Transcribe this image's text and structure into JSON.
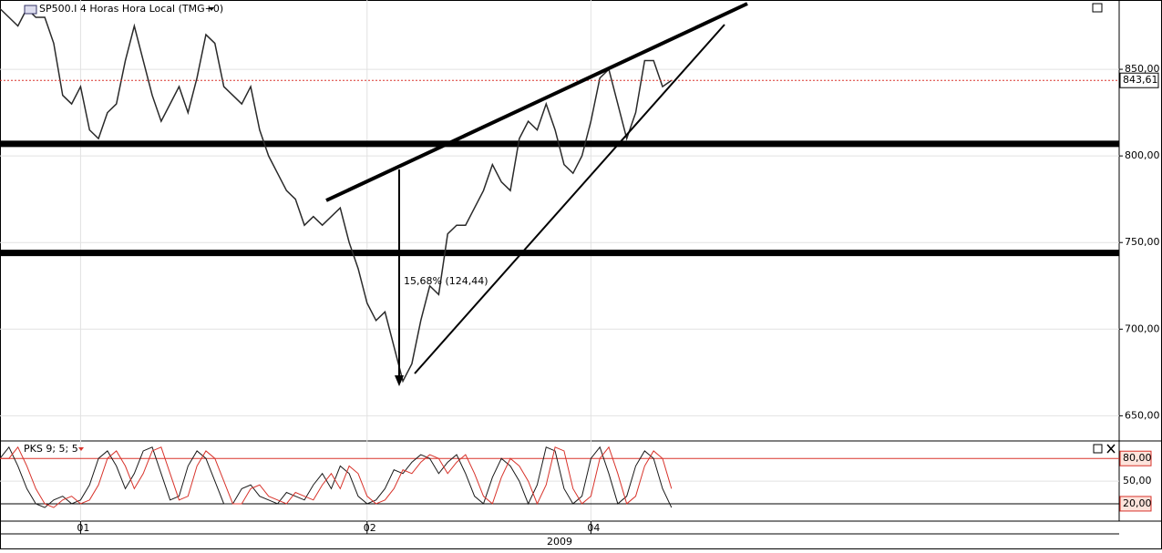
{
  "chart_data": [
    {
      "type": "line",
      "title": "SP500.I 4 Horas Hora Local (TMG+0)",
      "color": "#2a2a2a",
      "values": [
        885,
        880,
        875,
        885,
        880,
        880,
        865,
        835,
        830,
        840,
        815,
        810,
        825,
        830,
        855,
        875,
        855,
        835,
        820,
        830,
        840,
        825,
        845,
        870,
        865,
        840,
        835,
        830,
        840,
        815,
        800,
        790,
        780,
        775,
        760,
        765,
        760,
        765,
        770,
        750,
        735,
        715,
        705,
        710,
        690,
        670,
        680,
        705,
        725,
        720,
        755,
        760,
        760,
        770,
        780,
        795,
        785,
        780,
        810,
        820,
        815,
        830,
        815,
        795,
        790,
        800,
        820,
        845,
        850,
        830,
        810,
        825,
        855,
        855,
        840,
        843.61
      ],
      "xlim": [
        0,
        125
      ],
      "xticks": [
        {
          "value": 9,
          "label": "01"
        },
        {
          "value": 41,
          "label": "02"
        },
        {
          "value": 66,
          "label": "04"
        }
      ],
      "xlabel": "2009",
      "ylim": [
        636,
        890
      ],
      "yticks": [
        {
          "value": 650,
          "label": "650,00"
        },
        {
          "value": 700,
          "label": "700,00"
        },
        {
          "value": 750,
          "label": "750,00"
        },
        {
          "value": 800,
          "label": "800,00"
        },
        {
          "value": 850,
          "label": "850,00"
        }
      ],
      "grid": true,
      "hlines": [
        807,
        744
      ],
      "last_price": {
        "value": 843.61,
        "label": "843,61"
      },
      "annotations": [
        "15,68% (124,44)"
      ]
    },
    {
      "type": "oscillator",
      "title": "PKS 9; 5; 5",
      "series": [
        {
          "color": "#1a1a1a",
          "values": [
            80,
            95,
            70,
            40,
            20,
            15,
            25,
            30,
            20,
            25,
            45,
            80,
            90,
            70,
            40,
            60,
            90,
            95,
            60,
            25,
            30,
            70,
            90,
            80,
            50,
            20,
            20,
            40,
            45,
            30,
            25,
            20,
            35,
            30,
            25,
            45,
            60,
            40,
            70,
            60,
            30,
            20,
            25,
            40,
            65,
            60,
            75,
            85,
            80,
            60,
            75,
            85,
            60,
            30,
            20,
            55,
            80,
            70,
            50,
            20,
            45,
            95,
            90,
            40,
            20,
            30,
            80,
            95,
            60,
            20,
            30,
            70,
            90,
            80,
            40,
            15
          ]
        },
        {
          "color": "#d8332b",
          "values": [
            80,
            80,
            95,
            70,
            40,
            20,
            15,
            25,
            30,
            20,
            25,
            45,
            80,
            90,
            70,
            40,
            60,
            90,
            95,
            60,
            25,
            30,
            70,
            90,
            80,
            50,
            20,
            20,
            40,
            45,
            30,
            25,
            20,
            35,
            30,
            25,
            45,
            60,
            40,
            70,
            60,
            30,
            20,
            25,
            40,
            65,
            60,
            75,
            85,
            80,
            60,
            75,
            85,
            60,
            30,
            20,
            55,
            80,
            70,
            50,
            20,
            45,
            95,
            90,
            40,
            20,
            30,
            80,
            95,
            60,
            20,
            30,
            70,
            90,
            80,
            40
          ]
        }
      ],
      "ylim": [
        -3,
        102
      ],
      "yticks": [
        {
          "value": 20,
          "label": "20,00"
        },
        {
          "value": 50,
          "label": "50,00"
        },
        {
          "value": 80,
          "label": "80,00"
        }
      ]
    }
  ]
}
